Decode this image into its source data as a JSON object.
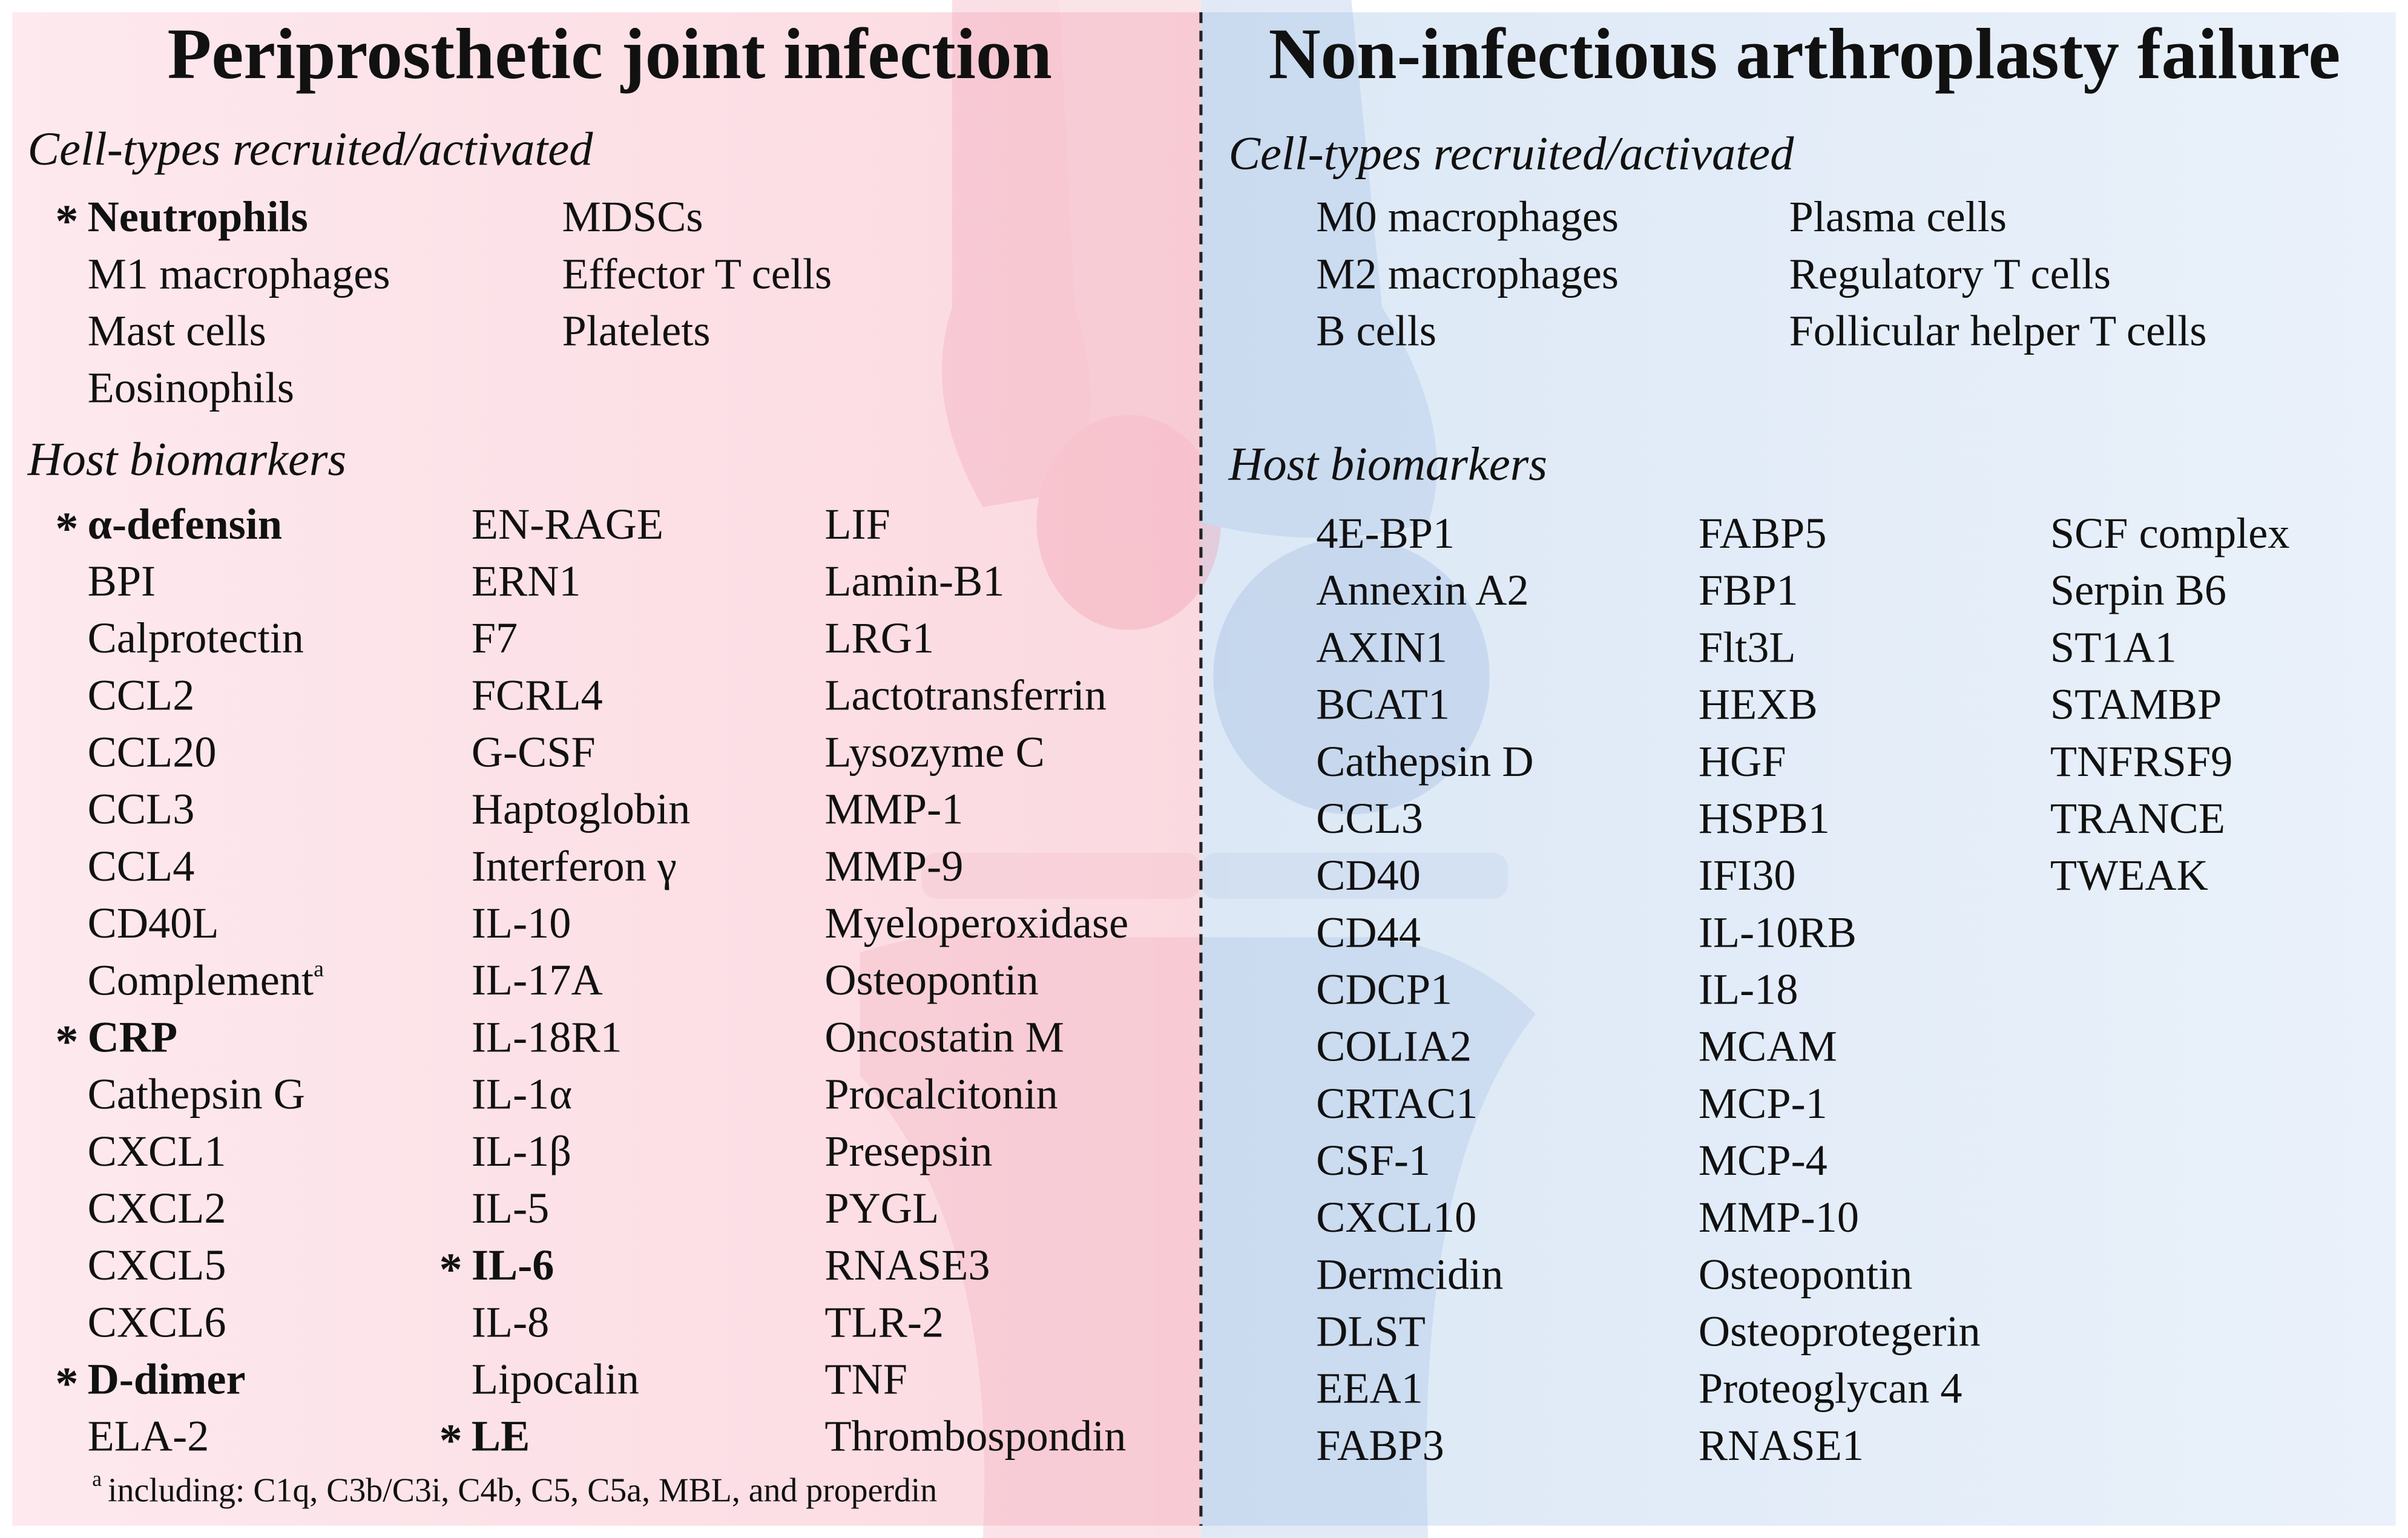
{
  "highlight_symbol": "*",
  "panels": [
    {
      "title": "Periprosthetic joint infection",
      "sections": [
        {
          "heading": "Cell-types recruited/activated",
          "columns": [
            [
              {
                "text": "Neutrophils",
                "highlight": true
              },
              "M1 macrophages",
              "Mast cells",
              "Eosinophils"
            ],
            [
              "MDSCs",
              "Effector T cells",
              "Platelets"
            ]
          ]
        },
        {
          "heading": "Host biomarkers",
          "columns": [
            [
              {
                "text": "α-defensin",
                "highlight": true
              },
              "BPI",
              "Calprotectin",
              "CCL2",
              "CCL20",
              "CCL3",
              "CCL4",
              "CD40L",
              {
                "text": "Complement",
                "footnote": "a"
              },
              {
                "text": "CRP",
                "highlight": true
              },
              "Cathepsin G",
              "CXCL1",
              "CXCL2",
              "CXCL5",
              "CXCL6",
              {
                "text": "D-dimer",
                "highlight": true
              },
              "ELA-2"
            ],
            [
              "EN-RAGE",
              "ERN1",
              "F7",
              "FCRL4",
              "G-CSF",
              "Haptoglobin",
              "Interferon γ",
              "IL-10",
              "IL-17A",
              "IL-18R1",
              "IL-1α",
              "IL-1β",
              "IL-5",
              {
                "text": "IL-6",
                "highlight": true
              },
              "IL-8",
              "Lipocalin",
              {
                "text": "LE",
                "highlight": true
              }
            ],
            [
              "LIF",
              "Lamin-B1",
              "LRG1",
              "Lactotransferrin",
              "Lysozyme C",
              "MMP-1",
              "MMP-9",
              "Myeloperoxidase",
              "Osteopontin",
              "Oncostatin M",
              "Procalcitonin",
              "Presepsin",
              "PYGL",
              "RNASE3",
              "TLR-2",
              "TNF",
              "Thrombospondin"
            ]
          ]
        }
      ],
      "footnote": {
        "mark": "a",
        "text": "including: C1q, C3b/C3i, C4b, C5, C5a, MBL, and properdin"
      }
    },
    {
      "title": "Non-infectious arthroplasty failure",
      "sections": [
        {
          "heading": "Cell-types recruited/activated",
          "columns": [
            [
              "M0 macrophages",
              "M2 macrophages",
              "B cells"
            ],
            [
              "Plasma cells",
              "Regulatory T cells",
              "Follicular helper T cells"
            ]
          ]
        },
        {
          "heading": "Host biomarkers",
          "columns": [
            [
              "4E-BP1",
              "Annexin A2",
              "AXIN1",
              "BCAT1",
              "Cathepsin D",
              "CCL3",
              "CD40",
              "CD44",
              "CDCP1",
              "COLIA2",
              "CRTAC1",
              "CSF-1",
              "CXCL10",
              "Dermcidin",
              "DLST",
              "EEA1",
              "FABP3"
            ],
            [
              "FABP5",
              "FBP1",
              "Flt3L",
              "HEXB",
              "HGF",
              "HSPB1",
              "IFI30",
              "IL-10RB",
              "IL-18",
              "MCAM",
              "MCP-1",
              "MCP-4",
              "MMP-10",
              "Osteopontin",
              "Osteoprotegerin",
              "Proteoglycan 4",
              "RNASE1"
            ],
            [
              "SCF complex",
              "Serpin B6",
              "ST1A1",
              "STAMBP",
              "TNFRSF9",
              "TRANCE",
              "TWEAK"
            ]
          ]
        }
      ]
    }
  ]
}
